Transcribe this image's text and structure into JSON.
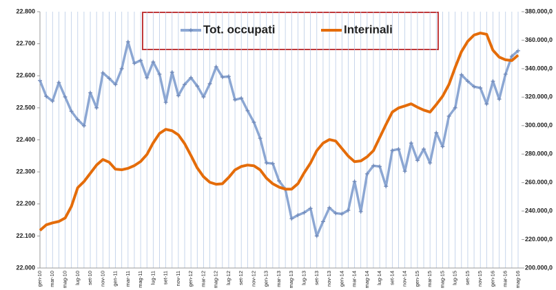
{
  "chart_data": {
    "type": "line",
    "categories": [
      "gen-10",
      null,
      "mar-10",
      null,
      "mag-10",
      null,
      "lug-10",
      null,
      "set-10",
      null,
      "nov-10",
      null,
      "gen-11",
      null,
      "mar-11",
      null,
      "mag-11",
      null,
      "lug-11",
      null,
      "set-11",
      null,
      "nov-11",
      null,
      "gen-12",
      null,
      "mar-12",
      null,
      "mag-12",
      null,
      "lug-12",
      null,
      "set-12",
      null,
      "nov-12",
      null,
      "gen-13",
      null,
      "mar-13",
      null,
      "mag-13",
      null,
      "lug-13",
      null,
      "set-13",
      null,
      "nov-13",
      null,
      "gen-14",
      null,
      "mar-14",
      null,
      "mag-14",
      null,
      "lug-14",
      null,
      "set-14",
      null,
      "nov-14",
      null,
      "gen-15",
      null,
      "mar-15",
      null,
      "mag-15",
      null,
      "lug-15",
      null,
      "set-15",
      null,
      "nov-15",
      null,
      "gen-16",
      null,
      "mar-16",
      null,
      "mag-16"
    ],
    "series": [
      {
        "name": "Tot. occupati",
        "color": "#8ca7d3",
        "values": [
          22585,
          22536,
          22521,
          22579,
          22534,
          22489,
          22463,
          22444,
          22547,
          22500,
          22609,
          22592,
          22573,
          22622,
          22706,
          22639,
          22648,
          22594,
          22643,
          22605,
          22517,
          22611,
          22538,
          22573,
          22594,
          22568,
          22534,
          22575,
          22628,
          22596,
          22598,
          22525,
          22530,
          22491,
          22455,
          22405,
          22328,
          22326,
          22272,
          22246,
          22154,
          22165,
          22173,
          22186,
          22100,
          22145,
          22188,
          22171,
          22169,
          22180,
          22270,
          22176,
          22294,
          22319,
          22317,
          22255,
          22367,
          22371,
          22302,
          22390,
          22336,
          22371,
          22328,
          22422,
          22379,
          22474,
          22500,
          22603,
          22583,
          22566,
          22562,
          22512,
          22583,
          22527,
          22605,
          22661,
          22678
        ]
      },
      {
        "name": "Interinali",
        "color": "#e46c0a",
        "axis": "y2",
        "values": [
          226400,
          230300,
          231700,
          232700,
          235100,
          243300,
          256400,
          260700,
          266500,
          272300,
          276200,
          274300,
          269400,
          269000,
          270000,
          271900,
          274800,
          279700,
          287900,
          294500,
          297400,
          296400,
          293500,
          287300,
          279000,
          270300,
          264100,
          260200,
          258800,
          259200,
          263600,
          268900,
          271300,
          272300,
          271800,
          268900,
          263100,
          259200,
          256800,
          255400,
          255400,
          259200,
          266900,
          273700,
          282400,
          287700,
          290200,
          289200,
          283900,
          278600,
          274700,
          275200,
          278100,
          282400,
          291600,
          300800,
          309500,
          312400,
          313800,
          315300,
          312900,
          310900,
          309500,
          314800,
          320600,
          328800,
          340900,
          352000,
          359200,
          363600,
          365000,
          364100,
          352900,
          348100,
          346200,
          345700,
          349500
        ]
      }
    ],
    "ylim": [
      22000,
      22800
    ],
    "yticks": [
      {
        "value": 22000,
        "label": "22.000"
      },
      {
        "value": 22100,
        "label": "22.100"
      },
      {
        "value": 22200,
        "label": "22.200"
      },
      {
        "value": 22300,
        "label": "22.300"
      },
      {
        "value": 22400,
        "label": "22.400"
      },
      {
        "value": 22500,
        "label": "22.500"
      },
      {
        "value": 22600,
        "label": "22.600"
      },
      {
        "value": 22700,
        "label": "22.700"
      },
      {
        "value": 22800,
        "label": "22.800"
      }
    ],
    "y2lim": [
      200000,
      380000
    ],
    "y2ticks": [
      {
        "value": 200000,
        "label": "200.000,0"
      },
      {
        "value": 220000,
        "label": "220.000,0"
      },
      {
        "value": 240000,
        "label": "240.000,0"
      },
      {
        "value": 260000,
        "label": "260.000,0"
      },
      {
        "value": 280000,
        "label": "280.000,0"
      },
      {
        "value": 300000,
        "label": "300.000,0"
      },
      {
        "value": 320000,
        "label": "320.000,0"
      },
      {
        "value": 340000,
        "label": "340.000,0"
      },
      {
        "value": 360000,
        "label": "360.000,0"
      },
      {
        "value": 380000,
        "label": "380.000,0"
      }
    ],
    "grid": true
  }
}
